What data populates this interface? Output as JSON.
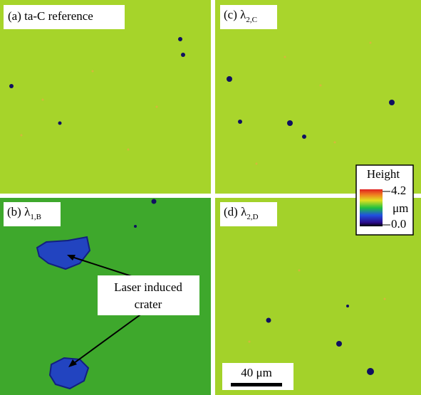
{
  "panels": [
    {
      "label": "(a) ta-C reference"
    },
    {
      "label_prefix": "(b) λ",
      "label_subscript": "1,B"
    },
    {
      "label_prefix": "(c) λ",
      "label_subscript": "2,C"
    },
    {
      "label_prefix": "(d) λ",
      "label_subscript": "2,D"
    }
  ],
  "annotation": {
    "lines": [
      "Laser induced",
      "crater"
    ]
  },
  "legend": {
    "title": "Height",
    "max": "4.2",
    "unit": "μm",
    "min": "0.0"
  },
  "scale_bar": "40 μm"
}
